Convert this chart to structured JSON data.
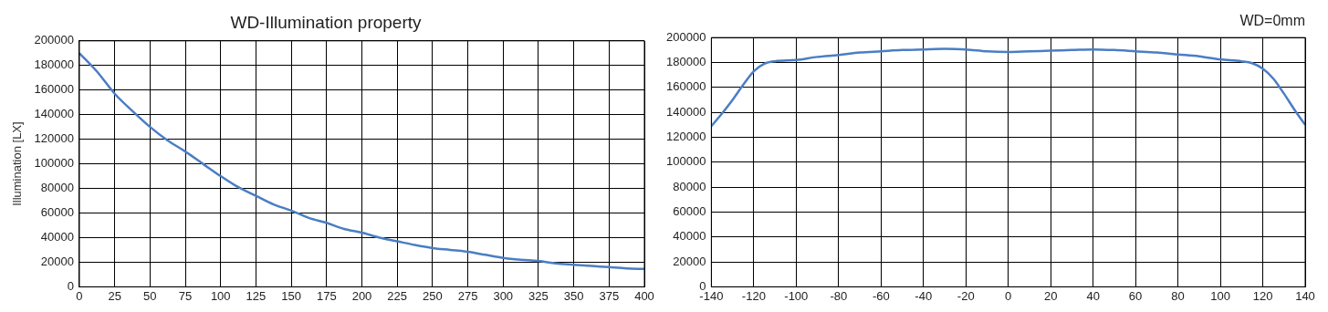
{
  "chart_data": [
    {
      "type": "line",
      "title": "WD-Illumination property",
      "ylabel": "Illumination [LX]",
      "xlim": [
        0,
        400
      ],
      "xticks": [
        0,
        25,
        50,
        75,
        100,
        125,
        150,
        175,
        200,
        225,
        250,
        275,
        300,
        325,
        350,
        375,
        400
      ],
      "ylim": [
        0,
        200000
      ],
      "yticks": [
        0,
        20000,
        40000,
        60000,
        80000,
        100000,
        120000,
        140000,
        160000,
        180000,
        200000
      ],
      "grid": true,
      "legend": false,
      "marker": "none",
      "line_style": "solid",
      "series": [
        {
          "color": "#4a7ec4",
          "x": [
            0,
            12.5,
            25,
            37.5,
            50,
            62.5,
            75,
            87.5,
            100,
            112.5,
            125,
            137.5,
            150,
            162.5,
            175,
            187.5,
            200,
            212.5,
            225,
            237.5,
            250,
            262.5,
            275,
            287.5,
            300,
            312.5,
            325,
            337.5,
            350,
            362.5,
            375,
            387.5,
            400
          ],
          "values": [
            190000,
            175000,
            157000,
            143000,
            130000,
            119000,
            110000,
            100000,
            90000,
            81000,
            74000,
            67000,
            62000,
            56000,
            52000,
            47000,
            44000,
            40000,
            37000,
            34000,
            31500,
            30000,
            28500,
            26000,
            23500,
            22000,
            21000,
            19000,
            18000,
            17000,
            16000,
            15000,
            14500
          ]
        }
      ]
    },
    {
      "type": "line",
      "title": "WD=0mm",
      "xlim": [
        -140,
        140
      ],
      "xticks": [
        -140,
        -120,
        -100,
        -80,
        -60,
        -40,
        -20,
        0,
        20,
        40,
        60,
        80,
        100,
        120,
        140
      ],
      "ylim": [
        0,
        200000
      ],
      "yticks": [
        0,
        20000,
        40000,
        60000,
        80000,
        100000,
        120000,
        140000,
        160000,
        180000,
        200000
      ],
      "grid": true,
      "legend": false,
      "marker": "none",
      "line_style": "solid",
      "series": [
        {
          "color": "#4a7ec4",
          "x": [
            -140,
            -135,
            -130,
            -125,
            -120,
            -115,
            -110,
            -100,
            -90,
            -80,
            -70,
            -60,
            -50,
            -40,
            -30,
            -20,
            -10,
            0,
            10,
            20,
            30,
            40,
            50,
            60,
            70,
            80,
            90,
            100,
            110,
            115,
            120,
            125,
            130,
            135,
            140
          ],
          "values": [
            129000,
            139000,
            150000,
            162000,
            173000,
            179000,
            181000,
            182000,
            184500,
            186000,
            188000,
            189000,
            190000,
            190500,
            191000,
            190500,
            189000,
            188500,
            189000,
            189500,
            190000,
            190500,
            190000,
            189000,
            188000,
            186500,
            185000,
            182500,
            181000,
            179500,
            175000,
            167000,
            155000,
            142000,
            130000
          ]
        }
      ]
    }
  ]
}
